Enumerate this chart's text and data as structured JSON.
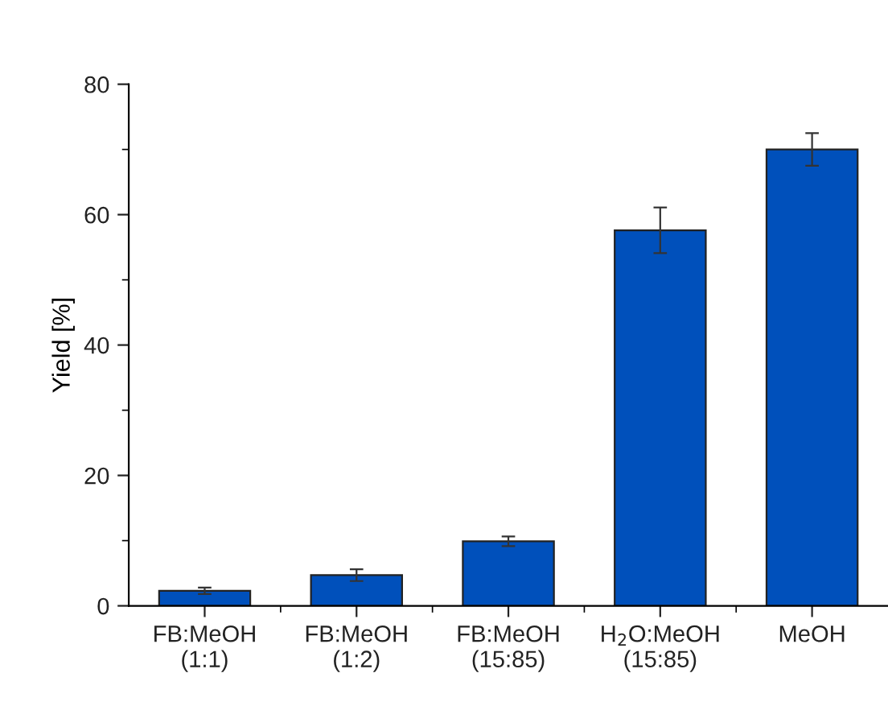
{
  "chart_data": {
    "type": "bar",
    "ylabel": "Yield [%]",
    "categories": [
      "FB:MeOH\n(1:1)",
      "FB:MeOH\n(1:2)",
      "FB:MeOH\n(15:85)",
      "H$_{2}$O:MeOH\n(15:85)",
      "MeOH"
    ],
    "values": [
      2.3,
      4.7,
      9.9,
      57.6,
      70.0
    ],
    "errors": [
      0.5,
      0.9,
      0.75,
      3.5,
      2.5
    ],
    "color": "#0050bb",
    "ylim": [
      0,
      80
    ],
    "yticks": [
      0,
      20,
      40,
      60,
      80
    ],
    "grid": false
  }
}
